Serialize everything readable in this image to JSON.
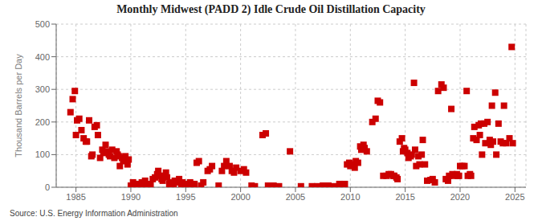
{
  "chart_data": {
    "type": "scatter",
    "title": "Monthly Midwest (PADD 2) Idle Crude Oil Distillation Capacity",
    "ylabel": "Thousand Barrels per Day",
    "annotations": [
      "Source: U.S. Energy Information Administration"
    ],
    "color": "#cc0000",
    "marker": "square",
    "grid": true,
    "xlim": [
      1983.2,
      2026.0
    ],
    "ylim": [
      0,
      500
    ],
    "xticks": [
      1985,
      1990,
      1995,
      2000,
      2005,
      2010,
      2015,
      2020,
      2025
    ],
    "yticks": [
      0,
      100,
      200,
      300,
      400,
      500
    ],
    "x": [
      1984.5,
      1984.7,
      1984.9,
      1985.0,
      1985.1,
      1985.3,
      1985.5,
      1985.7,
      1985.9,
      1986.0,
      1986.2,
      1986.4,
      1986.5,
      1986.7,
      1986.9,
      1987.0,
      1987.2,
      1987.4,
      1987.5,
      1987.7,
      1987.9,
      1988.0,
      1988.1,
      1988.3,
      1988.5,
      1988.7,
      1988.8,
      1988.9,
      1989.0,
      1989.2,
      1989.3,
      1989.5,
      1989.7,
      1989.8,
      1990.0,
      1990.2,
      1990.4,
      1990.6,
      1990.7,
      1990.9,
      1991.0,
      1991.1,
      1991.3,
      1991.5,
      1991.6,
      1991.8,
      1992.0,
      1992.2,
      1992.4,
      1992.5,
      1992.7,
      1992.8,
      1992.9,
      1993.0,
      1993.2,
      1993.3,
      1993.5,
      1993.6,
      1993.8,
      1993.9,
      1994.0,
      1994.2,
      1994.4,
      1994.6,
      1994.7,
      1994.9,
      1995.0,
      1995.2,
      1995.4,
      1995.6,
      1995.8,
      1996.0,
      1996.2,
      1996.4,
      1996.6,
      1997.0,
      1997.2,
      1997.4,
      1998.0,
      1998.3,
      1998.5,
      1998.7,
      1999.0,
      1999.2,
      1999.4,
      1999.6,
      2000.0,
      2000.3,
      2000.5,
      2001.0,
      2001.3,
      2002.0,
      2002.3,
      2002.5,
      2002.7,
      2003.0,
      2003.5,
      2004.5,
      2005.5,
      2006.5,
      2007.0,
      2007.5,
      2008.0,
      2008.5,
      2009.0,
      2009.3,
      2009.5,
      2009.7,
      2009.9,
      2010.0,
      2010.2,
      2010.4,
      2010.5,
      2010.7,
      2010.9,
      2011.0,
      2011.2,
      2011.3,
      2011.5,
      2012.0,
      2012.3,
      2012.5,
      2012.7,
      2013.0,
      2013.3,
      2013.5,
      2013.7,
      2013.9,
      2014.0,
      2014.2,
      2014.3,
      2014.5,
      2014.7,
      2014.8,
      2014.9,
      2015.0,
      2015.2,
      2015.3,
      2015.5,
      2015.6,
      2015.8,
      2015.9,
      2016.0,
      2016.2,
      2016.3,
      2016.5,
      2016.6,
      2016.8,
      2017.0,
      2017.3,
      2017.5,
      2017.7,
      2018.0,
      2018.3,
      2018.5,
      2018.7,
      2018.9,
      2019.0,
      2019.2,
      2019.3,
      2019.5,
      2019.7,
      2019.8,
      2019.9,
      2020.0,
      2020.2,
      2020.4,
      2020.6,
      2020.7,
      2020.9,
      2021.0,
      2021.2,
      2021.3,
      2021.5,
      2021.7,
      2021.8,
      2021.9,
      2022.0,
      2022.2,
      2022.3,
      2022.5,
      2022.7,
      2022.8,
      2022.9,
      2023.0,
      2023.2,
      2023.3,
      2023.5,
      2023.7,
      2023.9,
      2024.0,
      2024.2,
      2024.5,
      2024.7,
      2024.8
    ],
    "values": [
      230,
      270,
      295,
      160,
      205,
      210,
      175,
      150,
      140,
      140,
      205,
      95,
      100,
      185,
      190,
      160,
      90,
      115,
      105,
      130,
      110,
      100,
      95,
      115,
      90,
      110,
      100,
      95,
      65,
      90,
      80,
      95,
      70,
      85,
      5,
      15,
      10,
      5,
      10,
      8,
      15,
      10,
      20,
      5,
      8,
      10,
      25,
      30,
      40,
      50,
      35,
      25,
      20,
      35,
      45,
      30,
      10,
      15,
      8,
      5,
      20,
      15,
      25,
      10,
      15,
      8,
      10,
      5,
      15,
      10,
      10,
      75,
      80,
      5,
      15,
      50,
      55,
      65,
      5,
      50,
      65,
      80,
      65,
      50,
      45,
      60,
      50,
      55,
      45,
      5,
      3,
      160,
      165,
      5,
      5,
      5,
      3,
      110,
      3,
      3,
      3,
      5,
      5,
      3,
      10,
      5,
      10,
      70,
      75,
      65,
      70,
      60,
      80,
      75,
      125,
      115,
      130,
      120,
      110,
      200,
      210,
      265,
      260,
      35,
      35,
      40,
      40,
      35,
      35,
      30,
      25,
      140,
      150,
      110,
      120,
      115,
      105,
      90,
      95,
      100,
      320,
      115,
      65,
      95,
      70,
      100,
      145,
      70,
      20,
      22,
      25,
      15,
      295,
      315,
      305,
      25,
      20,
      35,
      240,
      40,
      35,
      40,
      35,
      35,
      65,
      65,
      65,
      295,
      35,
      40,
      35,
      150,
      185,
      145,
      190,
      160,
      195,
      100,
      195,
      135,
      200,
      145,
      130,
      250,
      140,
      290,
      100,
      195,
      140,
      135,
      250,
      135,
      150,
      430,
      135
    ]
  }
}
